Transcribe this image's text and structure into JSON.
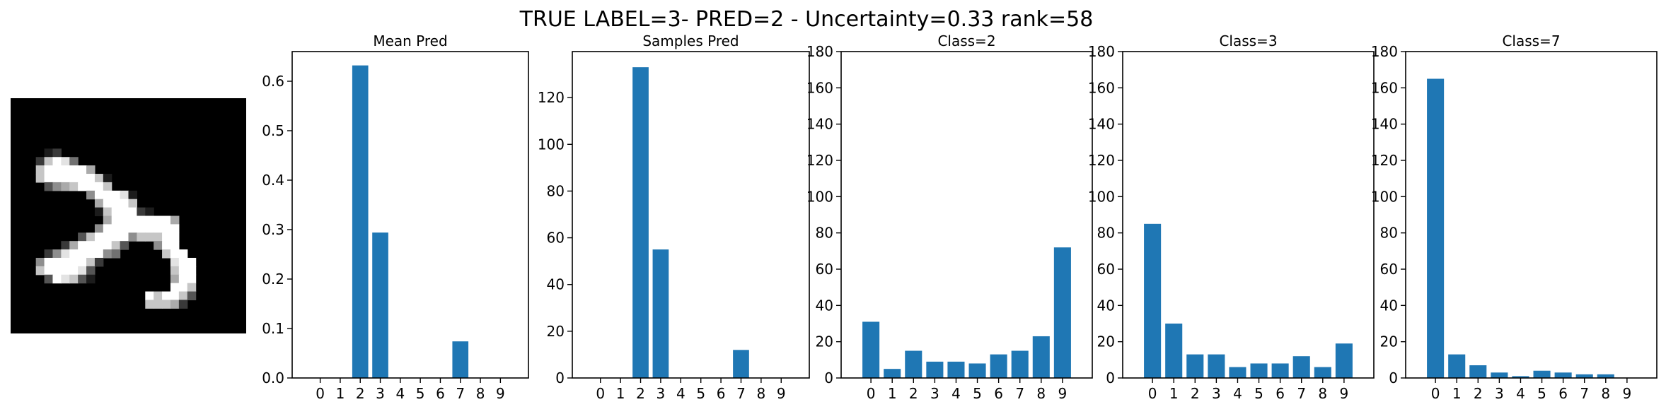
{
  "figure": {
    "title": "TRUE LABEL=3- PRED=2 - Uncertainty=0.33 rank=58"
  },
  "digit_image": {
    "rows": [
      "............................",
      "............................",
      "............................",
      "............................",
      "............................",
      "............................",
      "....12.......................",
      "...27984.....................",
      "...7999996...................",
      "...799999971.................",
      "....35679997.................",
      ".........599981..............",
      "..........69997..............",
      "..........1799921.............",
      "...........699999996..........",
      "..........5999999999.........",
      "........379999577799..........",
      "......26999973...599.........",
      "....258999954.....799........",
      "...59999972........899.......",
      "...7999983.........799.......",
      "....398731.........699.......",
      "...................997.......",
      "................979973........",
      "................77762.........",
      "............................",
      "............................",
      "............................"
    ]
  },
  "chart_data": [
    {
      "type": "bar",
      "title": "Mean Pred",
      "categories": [
        "0",
        "1",
        "2",
        "3",
        "4",
        "5",
        "6",
        "7",
        "8",
        "9"
      ],
      "values": [
        0,
        0,
        0.632,
        0.294,
        0,
        0,
        0,
        0.074,
        0,
        0
      ],
      "ylim": [
        0,
        0.66
      ],
      "yticks": [
        "0.0",
        "0.1",
        "0.2",
        "0.3",
        "0.4",
        "0.5",
        "0.6"
      ],
      "xlabel": "",
      "ylabel": "",
      "color": "#1f77b4"
    },
    {
      "type": "bar",
      "title": "Samples Pred",
      "categories": [
        "0",
        "1",
        "2",
        "3",
        "4",
        "5",
        "6",
        "7",
        "8",
        "9"
      ],
      "values": [
        0,
        0,
        133,
        55,
        0,
        0,
        0,
        12,
        0,
        0
      ],
      "ylim": [
        0,
        139.7
      ],
      "yticks": [
        "0",
        "20",
        "40",
        "60",
        "80",
        "100",
        "120"
      ],
      "xlabel": "",
      "ylabel": "",
      "color": "#1f77b4"
    },
    {
      "type": "bar",
      "title": "Class=2",
      "categories": [
        "0",
        "1",
        "2",
        "3",
        "4",
        "5",
        "6",
        "7",
        "8",
        "9"
      ],
      "values": [
        31,
        5,
        15,
        9,
        9,
        8,
        13,
        15,
        23,
        72
      ],
      "ylim": [
        0,
        180
      ],
      "yticks": [
        "0",
        "20",
        "40",
        "60",
        "80",
        "100",
        "120",
        "140",
        "160",
        "180"
      ],
      "xlabel": "",
      "ylabel": "",
      "color": "#1f77b4"
    },
    {
      "type": "bar",
      "title": "Class=3",
      "categories": [
        "0",
        "1",
        "2",
        "3",
        "4",
        "5",
        "6",
        "7",
        "8",
        "9"
      ],
      "values": [
        85,
        30,
        13,
        13,
        6,
        8,
        8,
        12,
        6,
        19
      ],
      "ylim": [
        0,
        180
      ],
      "yticks": [
        "0",
        "20",
        "40",
        "60",
        "80",
        "100",
        "120",
        "140",
        "160",
        "180"
      ],
      "xlabel": "",
      "ylabel": "",
      "color": "#1f77b4"
    },
    {
      "type": "bar",
      "title": "Class=7",
      "categories": [
        "0",
        "1",
        "2",
        "3",
        "4",
        "5",
        "6",
        "7",
        "8",
        "9"
      ],
      "values": [
        165,
        13,
        7,
        3,
        1,
        4,
        3,
        2,
        2,
        0
      ],
      "ylim": [
        0,
        180
      ],
      "yticks": [
        "0",
        "20",
        "40",
        "60",
        "80",
        "100",
        "120",
        "140",
        "160",
        "180"
      ],
      "xlabel": "",
      "ylabel": "",
      "color": "#1f77b4"
    }
  ]
}
